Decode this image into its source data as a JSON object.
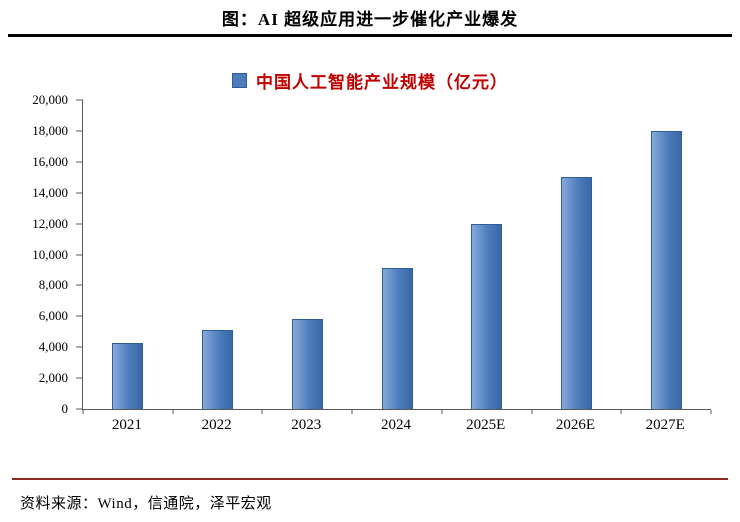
{
  "header": {
    "title": "图：AI 超级应用进一步催化产业爆发"
  },
  "legend": {
    "label": "中国人工智能产业规模（亿元）"
  },
  "footer": {
    "source": "资料来源：Wind，信通院，泽平宏观"
  },
  "colors": {
    "bar": "#4d7cbd",
    "bar_light": "#86a9d8",
    "bar_dark": "#3a68a5",
    "bar_border": "#2e5d9e",
    "legend_text": "#c00000",
    "divider_top": "#000000",
    "divider_bottom": "#8e2a21"
  },
  "chart_data": {
    "type": "bar",
    "categories": [
      "2021",
      "2022",
      "2023",
      "2024",
      "2025E",
      "2026E",
      "2027E"
    ],
    "values": [
      4300,
      5100,
      5800,
      9100,
      12000,
      15000,
      18000
    ],
    "title": "中国人工智能产业规模（亿元）",
    "xlabel": "",
    "ylabel": "",
    "ylim": [
      0,
      20000
    ],
    "ytick_step": 2000,
    "grid": false,
    "legend_position": "top"
  }
}
